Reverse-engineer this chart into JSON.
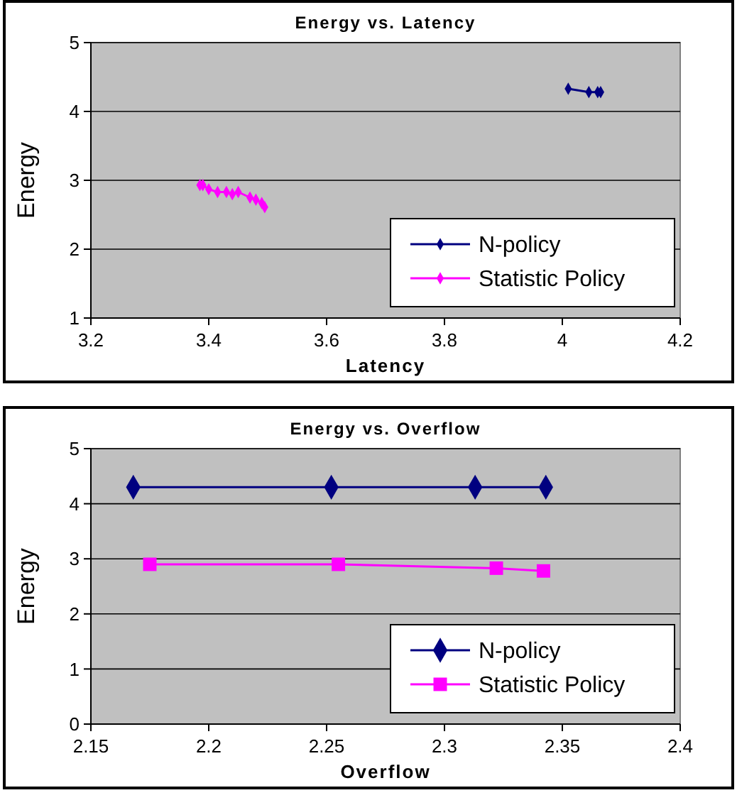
{
  "chart_data": [
    {
      "type": "line",
      "title": "Energy vs. Latency",
      "xlabel": "Latency",
      "ylabel": "Energy",
      "xlim": [
        3.2,
        4.2
      ],
      "xticks": [
        3.2,
        3.4,
        3.6,
        3.8,
        4,
        4.2
      ],
      "ylim": [
        1,
        5
      ],
      "yticks": [
        1,
        2,
        3,
        4,
        5
      ],
      "grid": "y",
      "legend": "bottom right",
      "marker": "diamond",
      "series": [
        {
          "name": "N-policy",
          "color": "#000080",
          "x": [
            4.01,
            4.045,
            4.06,
            4.065
          ],
          "values": [
            4.33,
            4.28,
            4.28,
            4.28
          ]
        },
        {
          "name": "Statistic Policy",
          "color": "#ff00ff",
          "x": [
            3.385,
            3.39,
            3.4,
            3.415,
            3.43,
            3.44,
            3.45,
            3.47,
            3.48,
            3.49,
            3.495
          ],
          "values": [
            2.93,
            2.93,
            2.87,
            2.83,
            2.83,
            2.8,
            2.83,
            2.75,
            2.72,
            2.67,
            2.61
          ]
        }
      ]
    },
    {
      "type": "line",
      "title": "Energy vs. Overflow",
      "xlabel": "Overflow",
      "ylabel": "Energy",
      "xlim": [
        2.15,
        2.4
      ],
      "xticks": [
        {
          "value": 2.15,
          "label": "2.15"
        },
        2.2,
        2.25,
        2.3,
        2.35,
        2.4
      ],
      "ylim": [
        0,
        5
      ],
      "yticks": [
        0,
        1,
        2,
        3,
        4,
        5
      ],
      "grid": "y",
      "legend": "bottom right",
      "series": [
        {
          "name": "N-policy",
          "color": "#000080",
          "marker": "diamond",
          "x": [
            2.168,
            2.252,
            2.313,
            2.343
          ],
          "values": [
            4.3,
            4.3,
            4.3,
            4.3
          ]
        },
        {
          "name": "Statistic Policy",
          "color": "#ff00ff",
          "marker": "square",
          "x": [
            2.175,
            2.255,
            2.322,
            2.342
          ],
          "values": [
            2.9,
            2.9,
            2.83,
            2.78
          ]
        }
      ]
    }
  ]
}
